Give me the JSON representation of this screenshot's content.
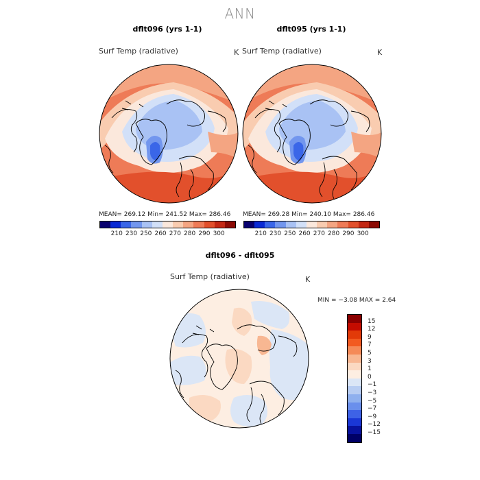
{
  "title": "ANN",
  "panels": [
    {
      "case_title": "dflt096 (yrs 1-1)",
      "variable": "Surf Temp (radiative)",
      "unit": "K",
      "stats": "MEAN=  269.12    Min=  241.52    Max=  286.46",
      "colorbar_ticks": [
        "210",
        "230",
        "250",
        "260",
        "270",
        "280",
        "290",
        "300"
      ]
    },
    {
      "case_title": "dflt095 (yrs 1-1)",
      "variable": "Surf Temp (radiative)",
      "unit": "K",
      "stats": "MEAN=  269.28    Min=  240.10    Max=  286.46",
      "colorbar_ticks": [
        "210",
        "230",
        "250",
        "260",
        "270",
        "280",
        "290",
        "300"
      ]
    }
  ],
  "diff_panel": {
    "case_title": "dflt096 - dflt095",
    "variable": "Surf Temp (radiative)",
    "unit": "K",
    "minmax": "MIN =   −3.08  MAX =     2.64",
    "colorbar_ticks": [
      "15",
      "12",
      "9",
      "7",
      "5",
      "3",
      "1",
      "0",
      "−1",
      "−3",
      "−5",
      "−7",
      "−9",
      "−12",
      "−15"
    ]
  },
  "colors": {
    "temp_scale": [
      "#08006e",
      "#0a2ad4",
      "#3a66e8",
      "#7296ee",
      "#a9c2f4",
      "#d2e0f8",
      "#fbe8dc",
      "#f9ccb0",
      "#f4a582",
      "#ee7b57",
      "#e2502c",
      "#c32814",
      "#8b0a04"
    ],
    "diff_scale": [
      "#8b0000",
      "#c40c00",
      "#e23a08",
      "#f25a20",
      "#f58a58",
      "#f8b792",
      "#fbd9c2",
      "#fdeee2",
      "#dbe6f6",
      "#b8cdf2",
      "#8fb0ee",
      "#6a8fec",
      "#3e62e6",
      "#1a37d6",
      "#08129e",
      "#000066"
    ]
  }
}
